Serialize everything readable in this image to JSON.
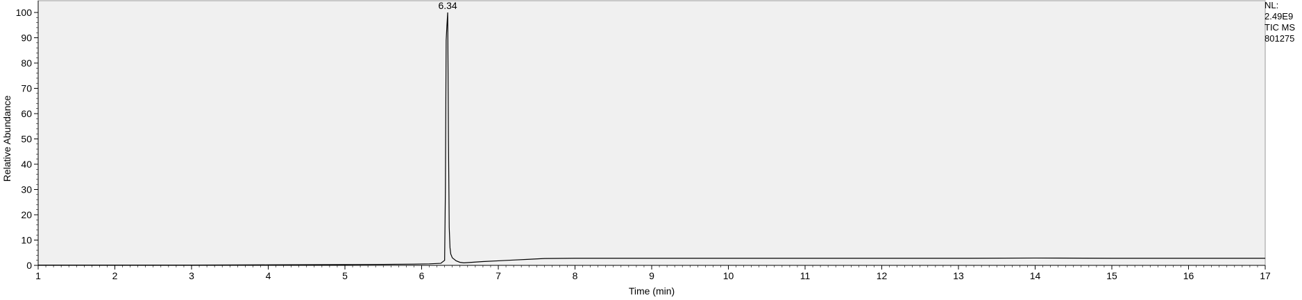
{
  "chart_data": {
    "type": "line",
    "title": "",
    "xlabel": "Time (min)",
    "ylabel": "Relative Abundance",
    "xlim": [
      1,
      17
    ],
    "ylim": [
      0,
      100
    ],
    "x_ticks": [
      1,
      2,
      3,
      4,
      5,
      6,
      7,
      8,
      9,
      10,
      11,
      12,
      13,
      14,
      15,
      16,
      17
    ],
    "x_tick_labels": [
      "1",
      "2",
      "3",
      "4",
      "5",
      "6",
      "7",
      "8",
      "9",
      "10",
      "11",
      "12",
      "13",
      "14",
      "15",
      "16",
      "17"
    ],
    "y_ticks": [
      0,
      10,
      20,
      30,
      40,
      50,
      60,
      70,
      80,
      90,
      100
    ],
    "y_tick_labels": [
      "0",
      "10",
      "20",
      "30",
      "40",
      "50",
      "60",
      "70",
      "80",
      "90",
      "100"
    ],
    "grid": false,
    "plot_background": "#f0f0f0",
    "line_color": "#000000",
    "peak_annotation": {
      "x": 6.34,
      "y": 100,
      "label": "6.34"
    },
    "series": [
      {
        "x": [
          1.0,
          2.0,
          3.0,
          4.0,
          5.0,
          5.5,
          5.9,
          6.1,
          6.25,
          6.3,
          6.31,
          6.32,
          6.33,
          6.34,
          6.35,
          6.36,
          6.37,
          6.38,
          6.4,
          6.45,
          6.5,
          6.55,
          6.6,
          6.7,
          6.8,
          7.0,
          7.2,
          7.4,
          7.6,
          8.0,
          9.0,
          10.0,
          11.0,
          12.0,
          13.0,
          14.0,
          15.0,
          16.0,
          17.0
        ],
        "values": [
          0.1,
          0.1,
          0.1,
          0.2,
          0.3,
          0.4,
          0.5,
          0.6,
          0.8,
          2.0,
          30.0,
          89.0,
          95.0,
          100.0,
          50.0,
          15.0,
          7.0,
          4.5,
          3.0,
          1.8,
          1.2,
          1.0,
          1.1,
          1.3,
          1.5,
          1.8,
          2.1,
          2.4,
          2.7,
          2.8,
          2.8,
          2.8,
          2.8,
          2.8,
          2.8,
          2.9,
          2.8,
          2.8,
          2.8
        ]
      }
    ]
  },
  "info": {
    "nl_label": "NL:",
    "nl_value": "2.49E9",
    "scan_type": "TIC  MS",
    "sample_id": "801275"
  }
}
